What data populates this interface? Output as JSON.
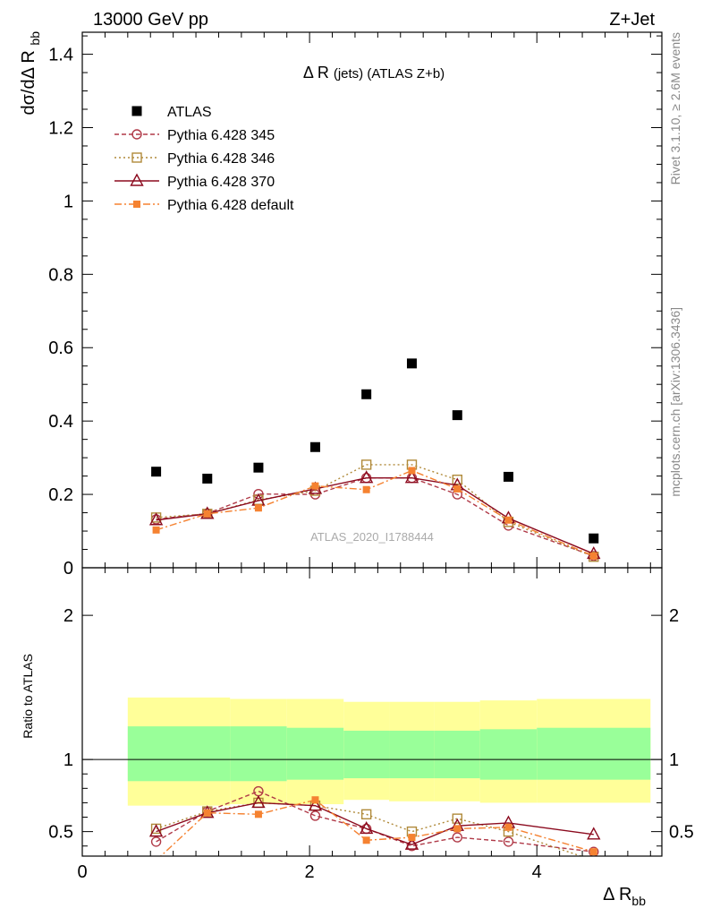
{
  "header": {
    "left": "13000 GeV pp",
    "right": "Z+Jet"
  },
  "side_labels": {
    "rivet": "Rivet 3.1.10, ≥ 2.6M events",
    "mcplots": "mcplots.cern.ch [arXiv:1306.3436]"
  },
  "colors": {
    "atlas": "#000000",
    "p345": "#b03a48",
    "p346": "#b08a3a",
    "p370": "#8b0a1e",
    "pdefault": "#f58231",
    "band_inner": "#99ff99",
    "band_outer": "#ffff99"
  },
  "chart_data": [
    {
      "type": "scatter",
      "panel": "main",
      "title": "Δ R (jets) (ATLAS Z+b)",
      "ylabel": "dσ/dΔ R_bb",
      "watermark": "ATLAS_2020_I1788444",
      "xlim": [
        0,
        5.1
      ],
      "ylim": [
        0,
        1.46
      ],
      "x_ticks": [
        "0",
        "2",
        "4"
      ],
      "y_ticks": [
        "0",
        "0.2",
        "0.4",
        "0.6",
        "0.8",
        "1",
        "1.2",
        "1.4"
      ],
      "x": [
        0.65,
        1.1,
        1.55,
        2.05,
        2.5,
        2.9,
        3.3,
        3.75,
        4.5
      ],
      "series": [
        {
          "name": "ATLAS",
          "values": [
            0.262,
            0.243,
            0.273,
            0.329,
            0.473,
            0.557,
            0.416,
            0.248,
            0.08
          ]
        },
        {
          "name": "Pythia 6.428 345",
          "values": [
            0.132,
            0.148,
            0.201,
            0.2,
            0.245,
            0.245,
            0.2,
            0.115,
            0.032
          ]
        },
        {
          "name": "Pythia 6.428 346",
          "values": [
            0.137,
            0.147,
            0.185,
            0.21,
            0.281,
            0.281,
            0.24,
            0.125,
            0.03
          ]
        },
        {
          "name": "Pythia 6.428 370",
          "values": [
            0.13,
            0.147,
            0.183,
            0.215,
            0.245,
            0.245,
            0.225,
            0.135,
            0.038
          ]
        },
        {
          "name": "Pythia 6.428 default",
          "values": [
            0.103,
            0.147,
            0.163,
            0.223,
            0.213,
            0.265,
            0.215,
            0.13,
            0.032
          ]
        }
      ]
    },
    {
      "type": "scatter",
      "panel": "ratio",
      "ylabel": "Ratio to ATLAS",
      "xlabel": "Δ R_bb",
      "xlim": [
        0,
        5.1
      ],
      "ylim": [
        0.33,
        2.33
      ],
      "x_ticks": [
        "0",
        "2",
        "4"
      ],
      "y_ticks": [
        "0.5",
        "1",
        "2"
      ],
      "x": [
        0.65,
        1.1,
        1.55,
        2.05,
        2.5,
        2.9,
        3.3,
        3.75,
        4.5
      ],
      "bands": {
        "edges": [
          0.4,
          0.85,
          1.3,
          1.8,
          2.3,
          2.7,
          3.1,
          3.5,
          4.0,
          5.0
        ],
        "inner_lo": [
          0.85,
          0.85,
          0.85,
          0.86,
          0.87,
          0.87,
          0.87,
          0.86,
          0.86
        ],
        "inner_hi": [
          1.23,
          1.23,
          1.23,
          1.22,
          1.2,
          1.2,
          1.2,
          1.21,
          1.22
        ],
        "outer_lo": [
          0.68,
          0.68,
          0.69,
          0.69,
          0.72,
          0.71,
          0.71,
          0.7,
          0.7
        ],
        "outer_hi": [
          1.43,
          1.43,
          1.42,
          1.42,
          1.4,
          1.4,
          1.4,
          1.41,
          1.42
        ]
      },
      "series": [
        {
          "name": "Pythia 6.428 345",
          "values": [
            0.43,
            0.64,
            0.78,
            0.61,
            0.52,
            0.4,
            0.46,
            0.43,
            0.36
          ]
        },
        {
          "name": "Pythia 6.428 346",
          "values": [
            0.52,
            0.64,
            0.7,
            0.68,
            0.62,
            0.5,
            0.59,
            0.5,
            0.3
          ]
        },
        {
          "name": "Pythia 6.428 370",
          "values": [
            0.5,
            0.63,
            0.7,
            0.68,
            0.52,
            0.41,
            0.54,
            0.56,
            0.48
          ]
        },
        {
          "name": "Pythia 6.428 default",
          "values": [
            0.3,
            0.63,
            0.62,
            0.72,
            0.44,
            0.46,
            0.52,
            0.53,
            0.36
          ]
        }
      ]
    }
  ]
}
